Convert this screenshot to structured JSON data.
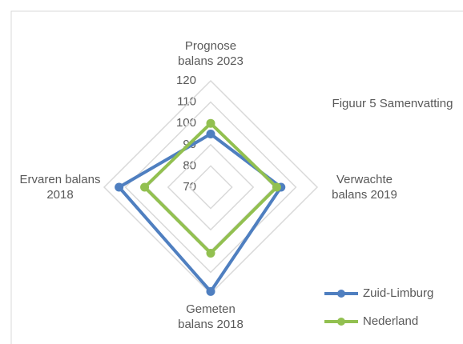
{
  "chart_data": {
    "type": "radar",
    "title": "Figuur 5 Samenvatting",
    "categories": [
      "Prognose balans 2023",
      "Verwachte balans 2019",
      "Gemeten balans 2018",
      "Ervaren balans 2018"
    ],
    "series": [
      {
        "name": "Zuid-Limburg",
        "color": "#4f7fc0",
        "values": [
          95,
          103,
          119,
          113
        ]
      },
      {
        "name": "Nederland",
        "color": "#92c050",
        "values": [
          100,
          101,
          101,
          101
        ]
      }
    ],
    "ylim": [
      70,
      120
    ],
    "yticks": [
      70,
      80,
      90,
      100,
      110,
      120
    ],
    "grid": true,
    "legend": "bottom-right"
  }
}
